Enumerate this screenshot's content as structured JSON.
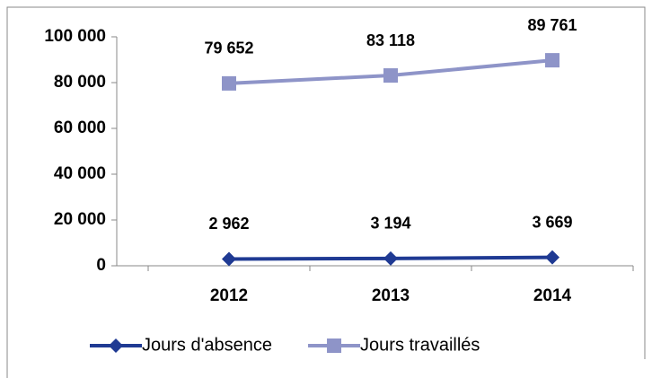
{
  "chart_data": {
    "type": "line",
    "categories": [
      "2012",
      "2013",
      "2014"
    ],
    "series": [
      {
        "name": "Jours d'absence",
        "color": "#1f3a93",
        "marker": "diamond",
        "values": [
          2962,
          3194,
          3669
        ],
        "value_labels": [
          "2 962",
          "3 194",
          "3 669"
        ]
      },
      {
        "name": "Jours travaillés",
        "color": "#8e94c8",
        "marker": "square",
        "values": [
          79652,
          83118,
          89761
        ],
        "value_labels": [
          "79 652",
          "83 118",
          "89 761"
        ]
      }
    ],
    "ylim": [
      0,
      100000
    ],
    "yticks": [
      0,
      {
        "value": 20000,
        "label": "20 000"
      },
      {
        "value": 40000,
        "label": "40 000"
      },
      {
        "value": 60000,
        "label": "60 000"
      },
      {
        "value": 80000,
        "label": "80 000"
      },
      {
        "value": 100000,
        "label": "100 000"
      }
    ],
    "legend": "bottom"
  }
}
